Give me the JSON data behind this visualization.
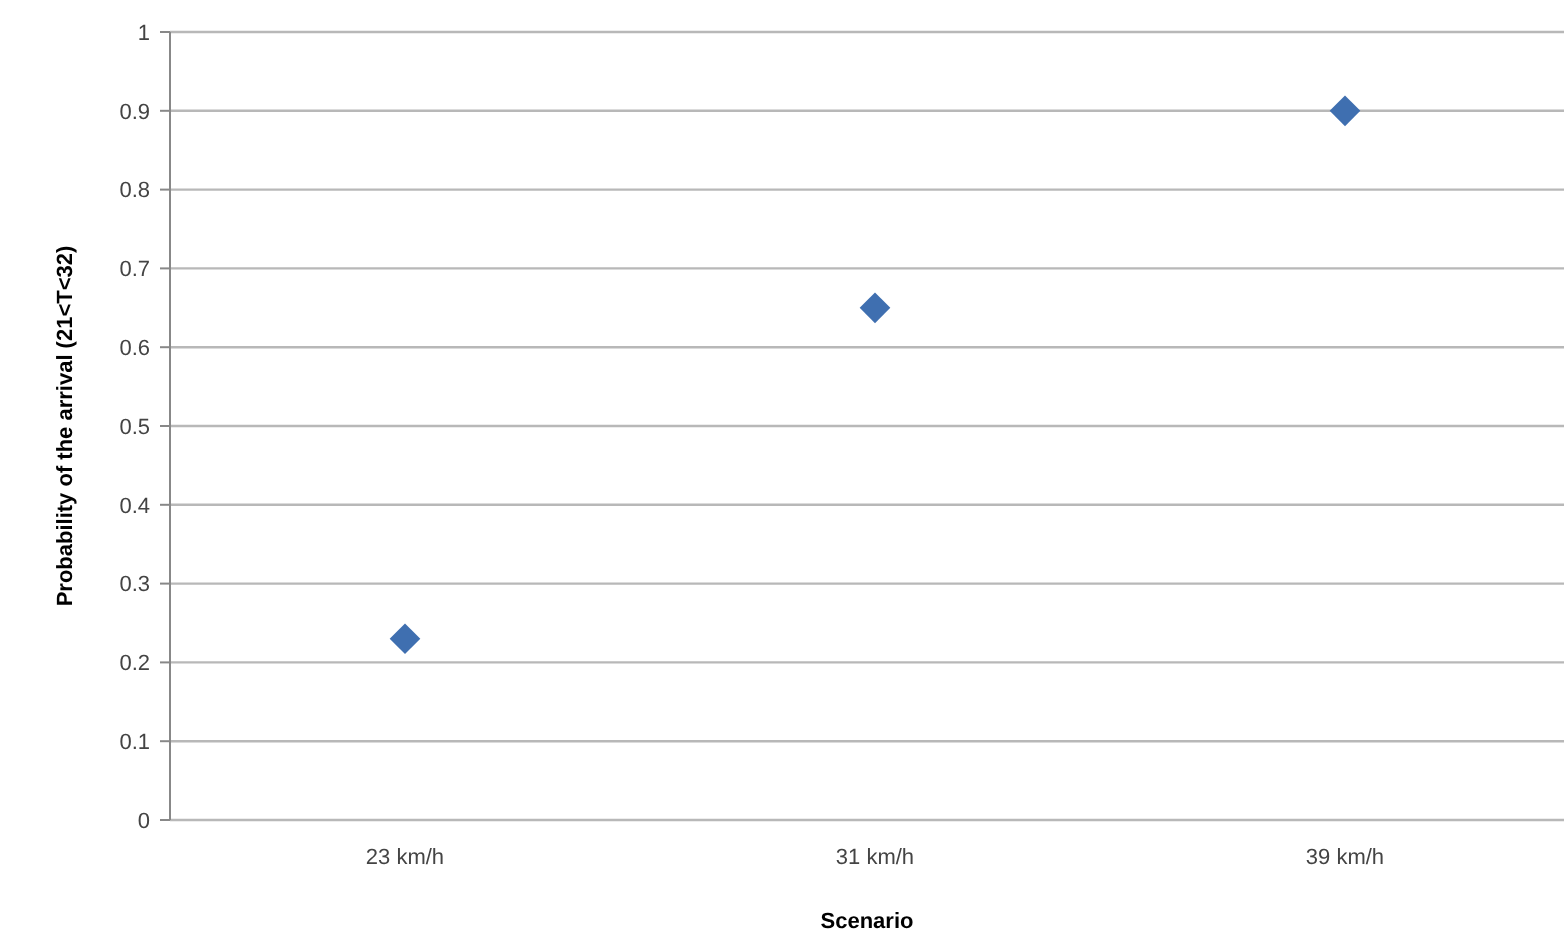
{
  "chart_data": {
    "type": "scatter",
    "xlabel": "Scenario",
    "ylabel": "Probability of the arrival (21<T<32)",
    "categories": [
      "23 km/h",
      "31 km/h",
      "39 km/h"
    ],
    "series": [
      {
        "color": "#3f6fb0",
        "values": [
          0.23,
          0.65,
          0.9
        ]
      }
    ],
    "ylim": [
      0,
      1
    ],
    "yticks": [
      0,
      0.1,
      0.2,
      0.3,
      0.4,
      0.5,
      0.6,
      0.7,
      0.8,
      0.9,
      1
    ],
    "grid": "y",
    "marker": "diamond"
  }
}
